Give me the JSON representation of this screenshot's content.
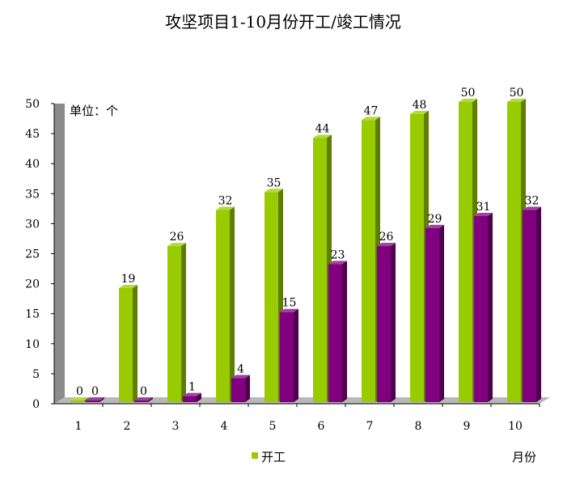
{
  "chart_data": {
    "type": "bar",
    "title": "攻坚项目1-10月份开工/竣工情况",
    "unit_label": "单位：个",
    "xlabel": "月份",
    "ylabel": "",
    "categories": [
      "1",
      "2",
      "3",
      "4",
      "5",
      "6",
      "7",
      "8",
      "9",
      "10"
    ],
    "y_ticks": [
      "0",
      "5",
      "10",
      "15",
      "20",
      "25",
      "30",
      "35",
      "40",
      "45",
      "50"
    ],
    "ylim": [
      0,
      50
    ],
    "legend_position": "bottom",
    "series": [
      {
        "name": "开工",
        "color": "#99cc00",
        "values": [
          0,
          19,
          26,
          32,
          35,
          44,
          47,
          48,
          50,
          50
        ]
      },
      {
        "color": "#800080",
        "values": [
          0,
          0,
          1,
          4,
          15,
          23,
          26,
          29,
          31,
          32
        ]
      }
    ]
  }
}
